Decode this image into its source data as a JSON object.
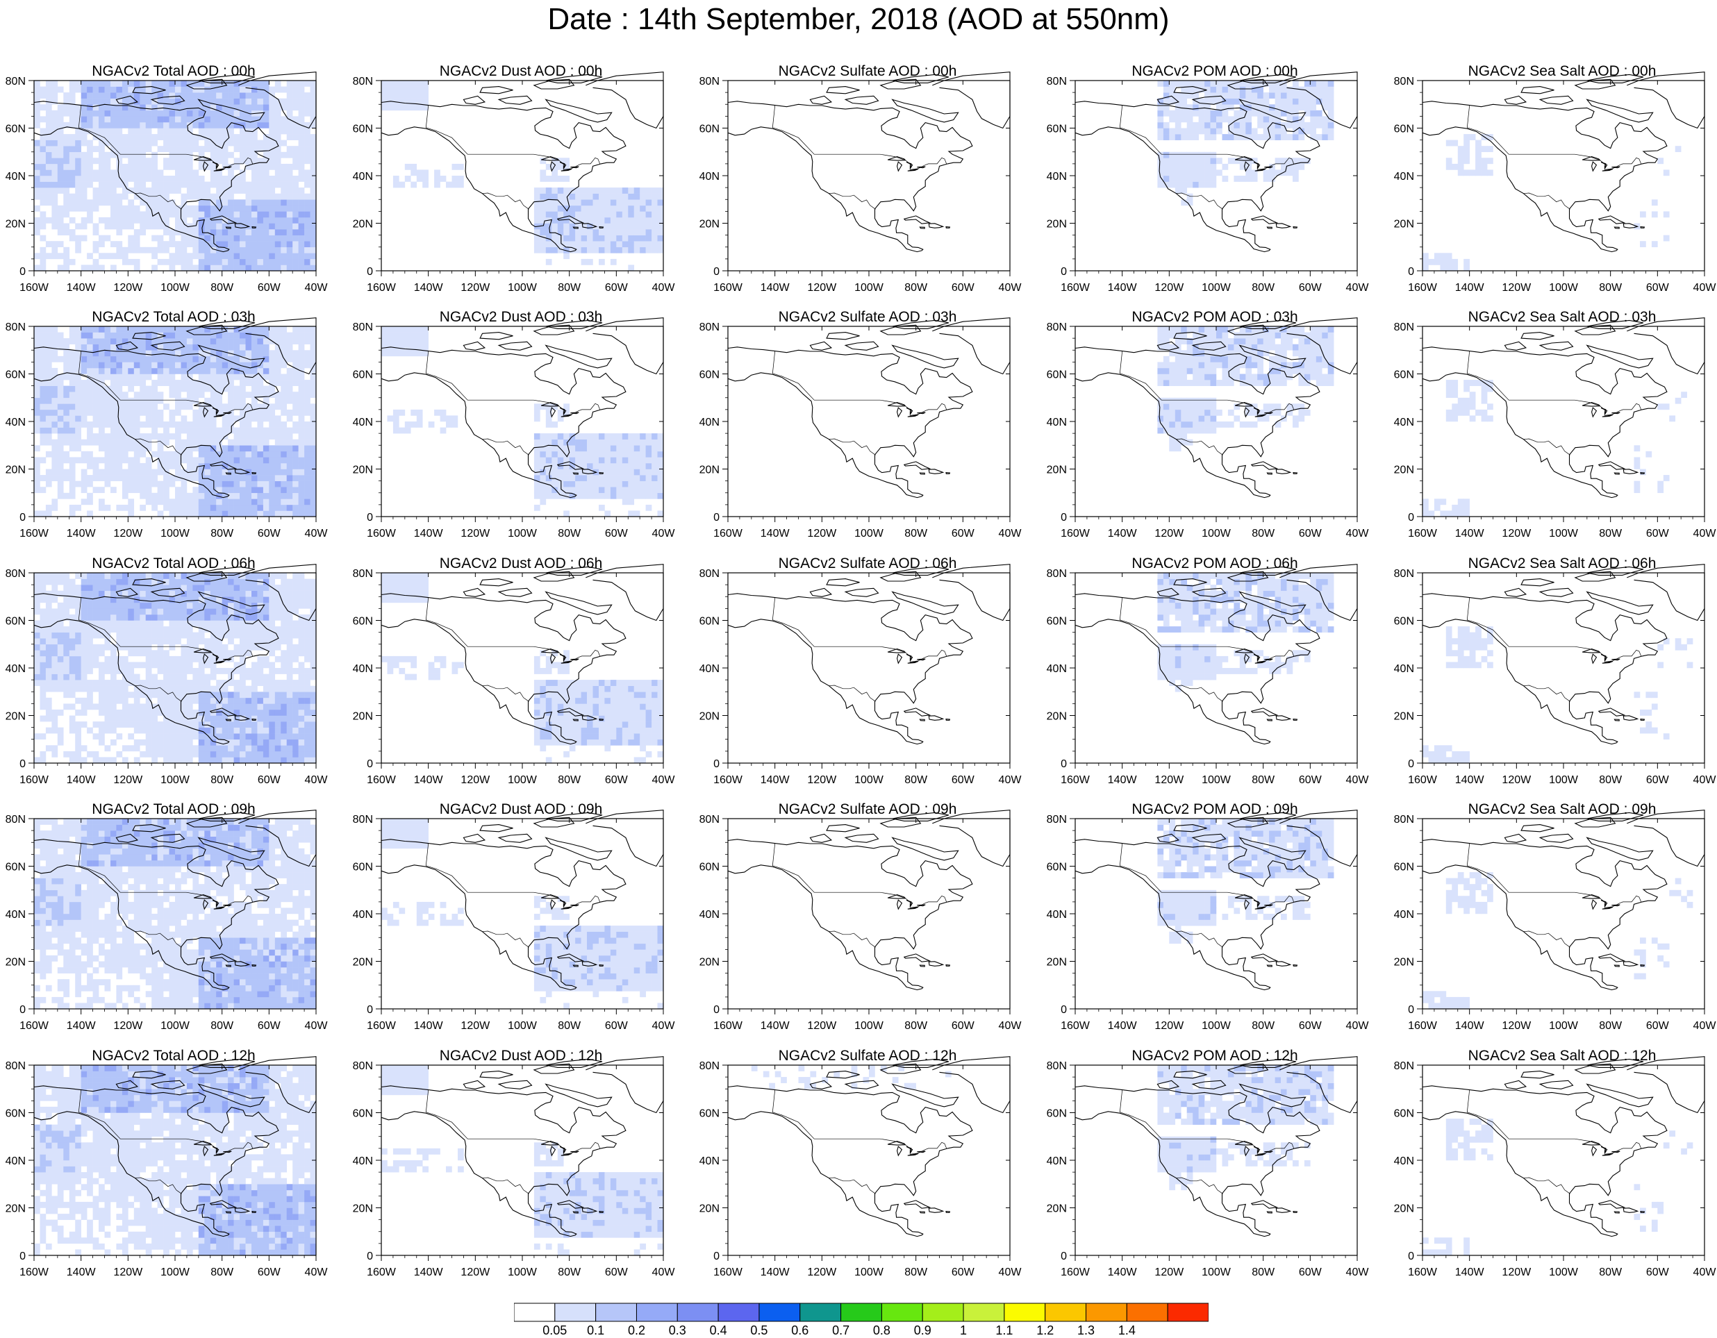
{
  "title": "Date : 14th September, 2018 (AOD at 550nm)",
  "lat_labels": [
    "0",
    "20N",
    "40N",
    "60N",
    "80N"
  ],
  "lon_labels": [
    "160W",
    "140W",
    "120W",
    "100W",
    "80W",
    "60W",
    "40W"
  ],
  "rows": [
    {
      "hour": "00h",
      "panels": [
        {
          "species": "total",
          "title": "NGACv2 Total AOD : 00h"
        },
        {
          "species": "dust",
          "title": "NGACv2 Dust AOD : 00h"
        },
        {
          "species": "sulfate",
          "title": "NGACv2 Sulfate AOD : 00h"
        },
        {
          "species": "pom",
          "title": "NGACv2 POM AOD : 00h"
        },
        {
          "species": "seasalt",
          "title": "NGACv2 Sea Salt AOD : 00h"
        }
      ]
    },
    {
      "hour": "03h",
      "panels": [
        {
          "species": "total",
          "title": "NGACv2 Total AOD : 03h"
        },
        {
          "species": "dust",
          "title": "NGACv2 Dust AOD : 03h"
        },
        {
          "species": "sulfate",
          "title": "NGACv2 Sulfate AOD : 03h"
        },
        {
          "species": "pom",
          "title": "NGACv2 POM AOD : 03h"
        },
        {
          "species": "seasalt",
          "title": "NGACv2 Sea Salt AOD : 03h"
        }
      ]
    },
    {
      "hour": "06h",
      "panels": [
        {
          "species": "total",
          "title": "NGACv2 Total AOD : 06h"
        },
        {
          "species": "dust",
          "title": "NGACv2 Dust AOD : 06h"
        },
        {
          "species": "sulfate",
          "title": "NGACv2 Sulfate AOD : 06h"
        },
        {
          "species": "pom",
          "title": "NGACv2 POM AOD : 06h"
        },
        {
          "species": "seasalt",
          "title": "NGACv2 Sea Salt AOD : 06h"
        }
      ]
    },
    {
      "hour": "09h",
      "panels": [
        {
          "species": "total",
          "title": "NGACv2 Total AOD : 09h"
        },
        {
          "species": "dust",
          "title": "NGACv2 Dust AOD : 09h"
        },
        {
          "species": "sulfate",
          "title": "NGACv2 Sulfate AOD : 09h"
        },
        {
          "species": "pom",
          "title": "NGACv2 POM AOD : 09h"
        },
        {
          "species": "seasalt",
          "title": "NGACv2 Sea Salt  AOD : 09h"
        }
      ]
    },
    {
      "hour": "12h",
      "panels": [
        {
          "species": "total",
          "title": "NGACv2 Total AOD  : 12h"
        },
        {
          "species": "dust",
          "title": "NGACv2 Dust AOD : 12h"
        },
        {
          "species": "sulfate",
          "title": "NGACv2 Sulfate AOD : 12h"
        },
        {
          "species": "pom",
          "title": "NGACv2 POM  AOD : 12h"
        },
        {
          "species": "seasalt",
          "title": "NGACv2 Sea Salt  AOD : 12h"
        }
      ]
    }
  ],
  "colorbar": {
    "labels": [
      "0.05",
      "0.1",
      "0.2",
      "0.3",
      "0.4",
      "0.5",
      "0.6",
      "0.7",
      "0.8",
      "0.9",
      "1",
      "1.1",
      "1.2",
      "1.3",
      "1.4"
    ],
    "colors": [
      "#ffffff",
      "#d6e0fb",
      "#b6c6f9",
      "#95aaf7",
      "#7c8ff3",
      "#5c66ef",
      "#0b5ff0",
      "#0f968e",
      "#26ca1a",
      "#67e70f",
      "#a4ee1a",
      "#c9f13a",
      "#fbfb00",
      "#fbc700",
      "#fb9800",
      "#fb7000",
      "#fb2a00"
    ]
  },
  "palette": {
    "light": "#d9e2fc",
    "mid": "#b3c5f9",
    "strong": "#95a9f6",
    "coast": "#000000",
    "grid": "#000000"
  }
}
